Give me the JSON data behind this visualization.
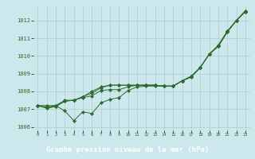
{
  "title": "Graphe pression niveau de la mer (hPa)",
  "bg_color": "#cce8ec",
  "grid_color": "#aaccd0",
  "line_color": "#2d6a2d",
  "title_bg": "#2d6a2d",
  "title_fg": "#ffffff",
  "xlim": [
    -0.5,
    23.5
  ],
  "ylim": [
    1005.8,
    1012.8
  ],
  "yticks": [
    1006,
    1007,
    1008,
    1009,
    1010,
    1011,
    1012
  ],
  "xticks": [
    0,
    1,
    2,
    3,
    4,
    5,
    6,
    7,
    8,
    9,
    10,
    11,
    12,
    13,
    14,
    15,
    16,
    17,
    18,
    19,
    20,
    21,
    22,
    23
  ],
  "series": [
    [
      1007.2,
      1007.2,
      1007.2,
      1006.9,
      1006.35,
      1006.85,
      1006.75,
      1007.35,
      1007.55,
      1007.65,
      1008.05,
      1008.25,
      1008.3,
      1008.3,
      1008.3,
      1008.3,
      1008.6,
      1008.8,
      1009.35,
      1010.1,
      1010.55,
      1011.35,
      1012.0,
      1012.5
    ],
    [
      1007.2,
      1007.1,
      1007.2,
      1007.5,
      1007.5,
      1007.65,
      1007.75,
      1008.05,
      1008.1,
      1008.1,
      1008.25,
      1008.35,
      1008.35,
      1008.35,
      1008.3,
      1008.3,
      1008.6,
      1008.85,
      1009.35,
      1010.1,
      1010.55,
      1011.35,
      1012.0,
      1012.5
    ],
    [
      1007.2,
      1007.1,
      1007.15,
      1007.45,
      1007.5,
      1007.7,
      1007.9,
      1008.2,
      1008.35,
      1008.35,
      1008.35,
      1008.35,
      1008.35,
      1008.35,
      1008.3,
      1008.3,
      1008.6,
      1008.85,
      1009.35,
      1010.1,
      1010.6,
      1011.4,
      1012.0,
      1012.55
    ],
    [
      1007.2,
      1007.05,
      1007.15,
      1007.45,
      1007.5,
      1007.7,
      1008.0,
      1008.25,
      1008.35,
      1008.35,
      1008.35,
      1008.35,
      1008.35,
      1008.35,
      1008.3,
      1008.3,
      1008.6,
      1008.85,
      1009.35,
      1010.1,
      1010.6,
      1011.4,
      1012.0,
      1012.55
    ]
  ]
}
